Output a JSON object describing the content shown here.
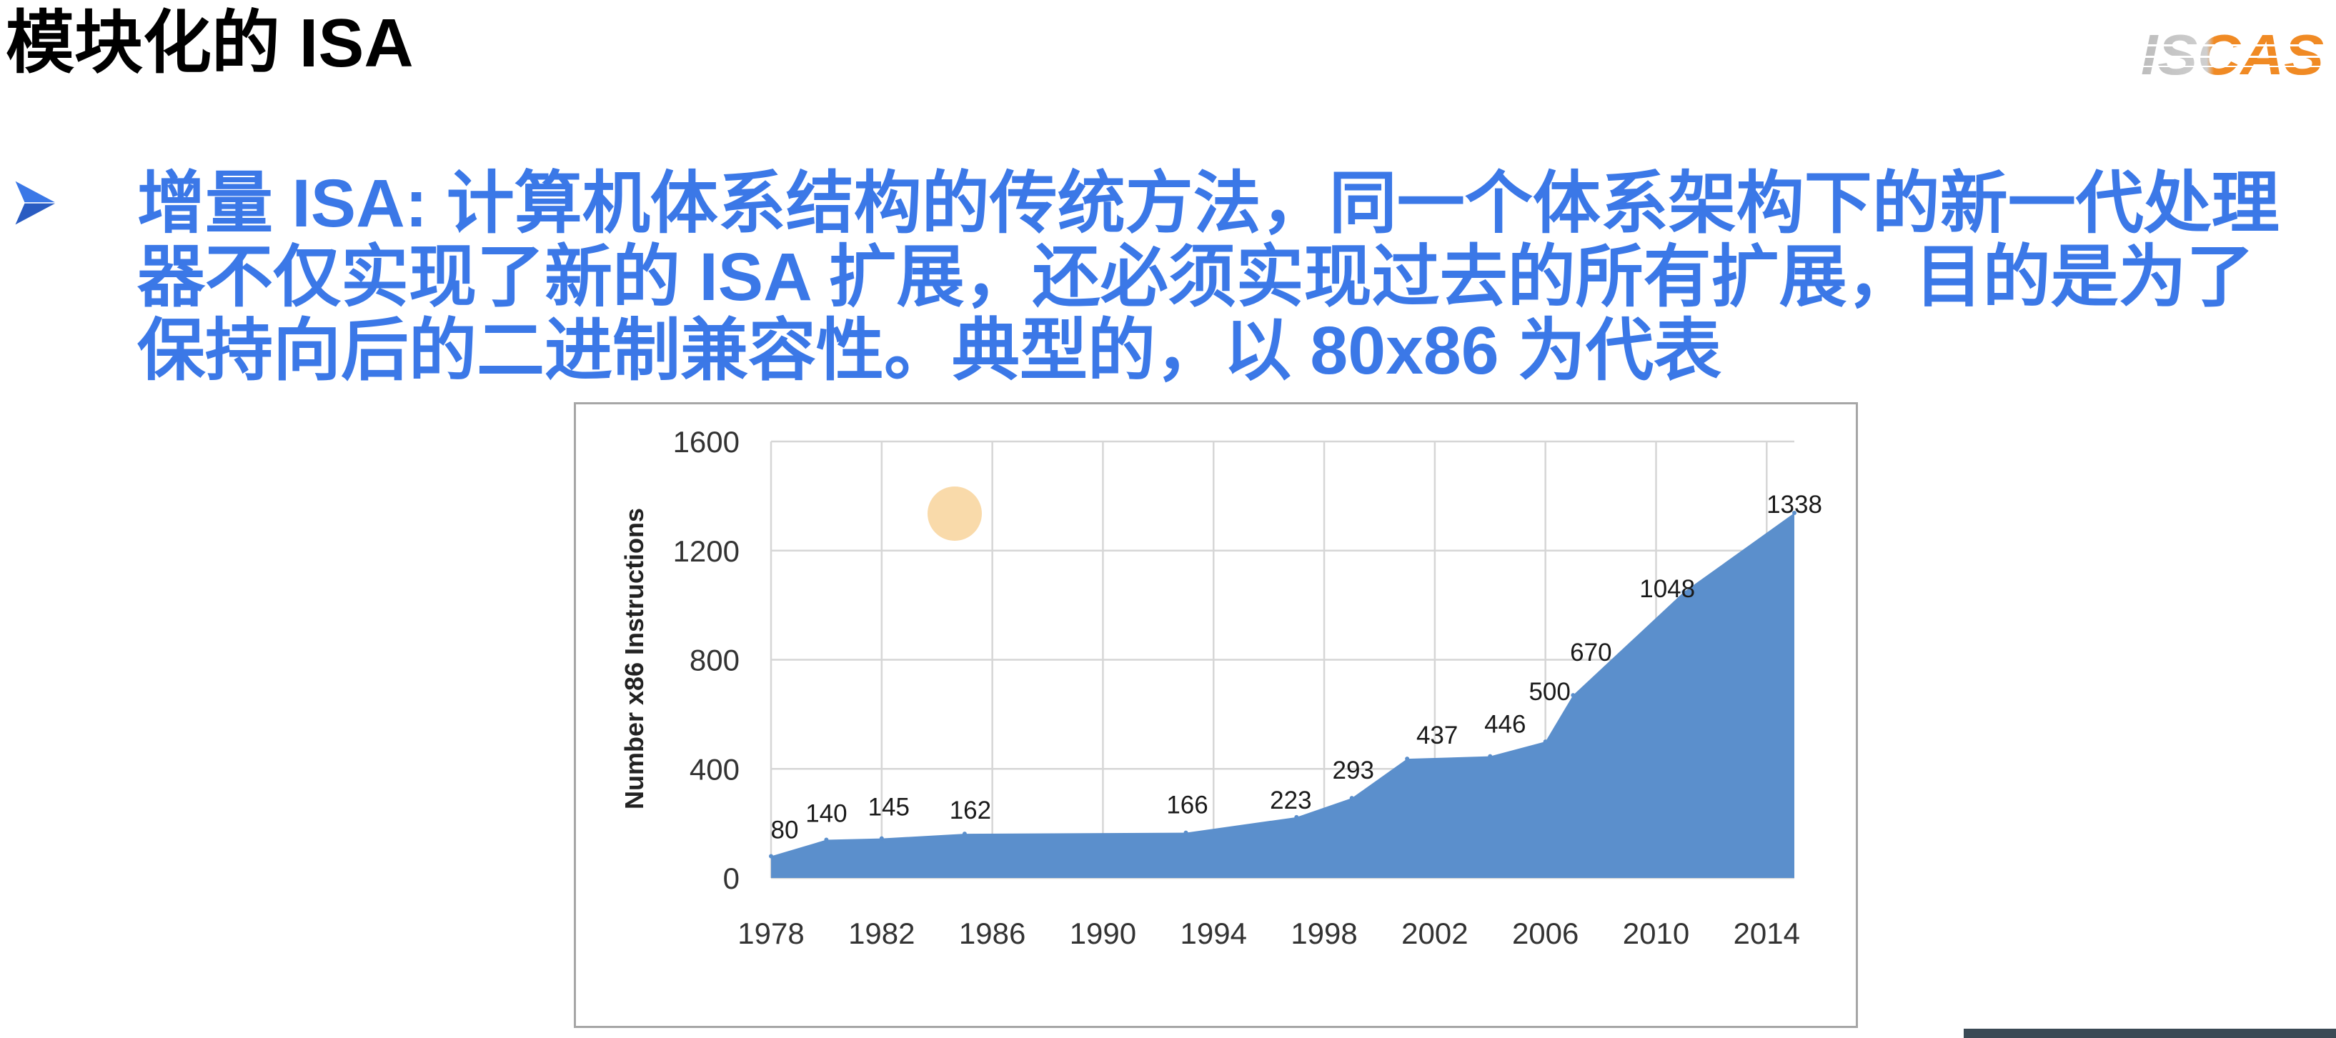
{
  "slide": {
    "title": "模块化的 ISA",
    "logo_text": "ISCAS",
    "bullet_icon": "arrowhead-bullet-icon",
    "bullet_lines": [
      "增量 ISA: 计算机体系结构的传统方法，同一个体系架构下的新一代处理",
      "器不仅实现了新的 ISA 扩展，还必须实现过去的所有扩展，目的是为了",
      "保持向后的二进制兼容性。典型的，以 80x86 为代表"
    ]
  },
  "colors": {
    "title": "#000000",
    "bullet": "#3b78e7",
    "logo_orange": "#f08a24",
    "logo_gray": "#bdbdbd",
    "chart_fill": "#5b8fcc",
    "grid": "#d6d6d6",
    "cursor_highlight": "#f9d7a3",
    "corner_bar": "#3b4a55"
  },
  "chart_data": {
    "type": "area",
    "ylabel": "Number x86 Instructions",
    "xlim": [
      1978,
      2015
    ],
    "ylim": [
      0,
      1600
    ],
    "xticks": [
      "1978",
      "1982",
      "1986",
      "1990",
      "1994",
      "1998",
      "2002",
      "2006",
      "2010",
      "2014"
    ],
    "yticks": [
      "0",
      "400",
      "800",
      "1200",
      "1600"
    ],
    "grid": true,
    "x": [
      1978,
      1980,
      1982,
      1985,
      1993,
      1997,
      1999,
      2001,
      2004,
      2006,
      2007,
      2011,
      2015
    ],
    "series": [
      {
        "values": [
          80,
          140,
          145,
          162,
          166,
          223,
          293,
          437,
          446,
          500,
          670,
          1048,
          1338
        ],
        "color": "#5b8fcc",
        "data_labels": true
      }
    ]
  }
}
